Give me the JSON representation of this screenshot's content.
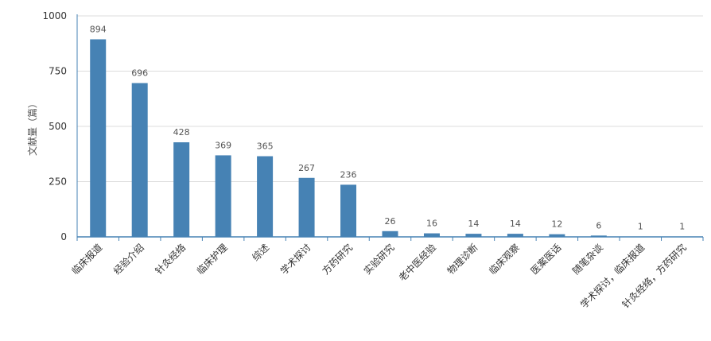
{
  "chart_data": {
    "type": "bar",
    "ylabel": "文献量（篇）",
    "ylim": [
      0,
      1000
    ],
    "yticks": [
      0,
      250,
      500,
      750,
      1000
    ],
    "grid": true,
    "categories": [
      "临床报道",
      "经验介绍",
      "针灸经络",
      "临床护理",
      "综述",
      "学术探讨",
      "方药研究",
      "实验研究",
      "老中医经验",
      "物理诊断",
      "临床观察",
      "医案医话",
      "随笔杂谈",
      "学术探讨，临床报道",
      "针灸经络，方药研究"
    ],
    "values": [
      894,
      696,
      428,
      369,
      365,
      267,
      236,
      26,
      16,
      14,
      14,
      12,
      6,
      1,
      1
    ],
    "colors": {
      "bar": "#4682b4",
      "axis": "#4682b4",
      "grid": "#dddddd",
      "text": "#555555"
    }
  }
}
